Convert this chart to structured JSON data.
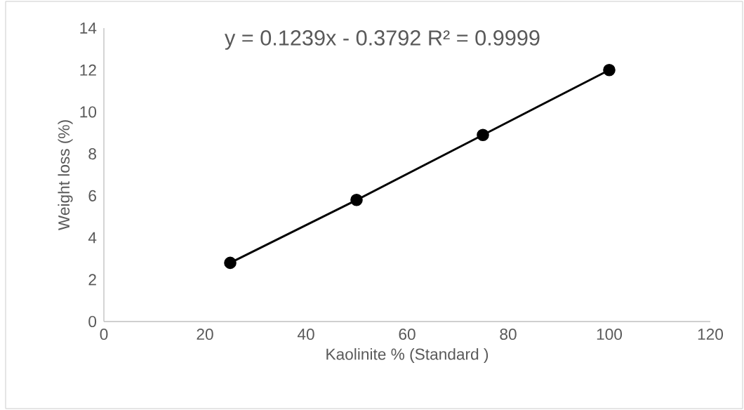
{
  "chart_data": {
    "type": "line",
    "xlabel": "Kaolinite % (Standard )",
    "ylabel": "Weight loss (%)",
    "x": [
      25,
      50,
      75,
      100
    ],
    "series": [
      {
        "color": "#000000",
        "values": [
          2.8,
          5.8,
          8.9,
          12.0
        ]
      }
    ],
    "marker": "circle",
    "line_style": "solid",
    "grid": false,
    "xlim": [
      0,
      120
    ],
    "xticks": [
      0,
      20,
      40,
      60,
      80,
      100,
      120
    ],
    "ylim": [
      0,
      14
    ],
    "yticks": [
      0,
      2,
      4,
      6,
      8,
      10,
      12,
      14
    ],
    "annotations": [
      "y = 0.1239x - 0.3792 R² = 0.9999"
    ]
  }
}
